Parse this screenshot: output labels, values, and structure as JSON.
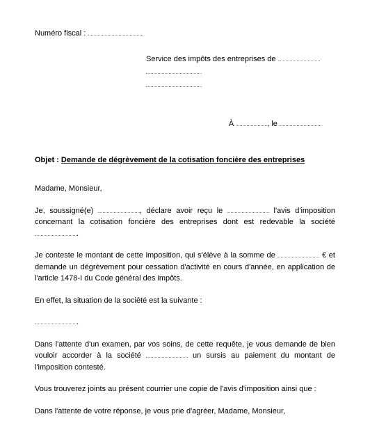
{
  "fiscal": {
    "label": "Numéro fiscal :"
  },
  "recipient": {
    "line1_prefix": "Service des impôts des entreprises de"
  },
  "date": {
    "prefix": "À",
    "sep": ", le"
  },
  "objet": {
    "label": "Objet :",
    "text": "Demande de dégrèvement de la cotisation foncière des entreprises"
  },
  "salutation": "Madame, Monsieur,",
  "p1": {
    "a": "Je, soussigné(e)",
    "b": ", déclare avoir reçu le",
    "c": "l'avis d'imposition concernant la cotisation foncière des entreprises dont est redevable la société",
    "d": "."
  },
  "p2": {
    "a": "Je conteste le montant de cette imposition, qui s'élève à la somme de",
    "b": "€ et demande un dégrèvement pour cessation d'activité en cours d'année, en application de l'article 1478-I du Code général des impôts."
  },
  "p3": {
    "a": "En effet, la situation de la société est la suivante :"
  },
  "p4": {
    "a": "Dans l'attente d'un examen, par vos soins, de cette requête, je vous demande de bien vouloir accorder à la société",
    "b": "un sursis au paiement du montant de l'imposition contesté."
  },
  "p5": {
    "a": "Vous trouverez joints au présent courrier une copie de l'avis d'imposition ainsi que :"
  },
  "p6": {
    "a": "Dans l'attente de votre réponse, je vous prie d'agréer, Madame, Monsieur,"
  }
}
